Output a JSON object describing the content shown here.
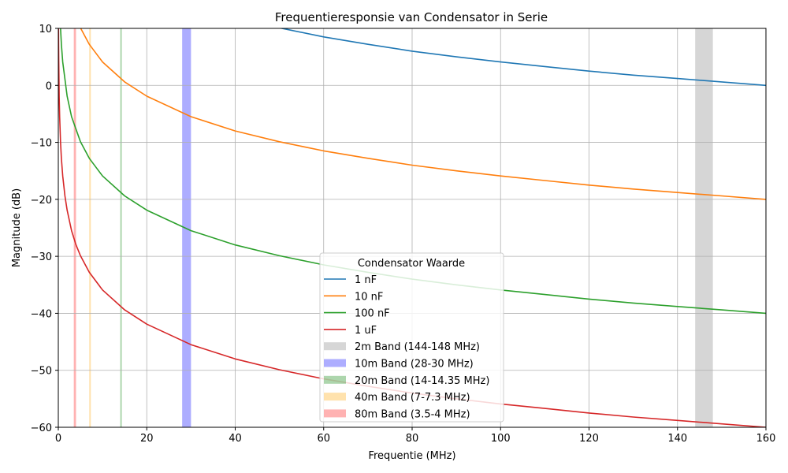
{
  "chart_data": {
    "type": "line",
    "title": "Frequentieresponsie van Condensator in Serie",
    "xlabel": "Frequentie (MHz)",
    "ylabel": "Magnitude (dB)",
    "xlim": [
      0,
      160
    ],
    "ylim": [
      -60,
      10
    ],
    "xticks": [
      0,
      20,
      40,
      60,
      80,
      100,
      120,
      140,
      160
    ],
    "yticks": [
      -60,
      -50,
      -40,
      -30,
      -20,
      -10,
      0,
      10
    ],
    "grid": true,
    "legend_title": "Condensator Waarde",
    "legend_position": "lower-center",
    "series": [
      {
        "name": "1 nF",
        "color": "#1f77b4",
        "x": [
          47.5,
          50,
          60,
          70,
          80,
          90,
          100,
          110,
          120,
          130,
          140,
          150,
          160
        ],
        "y": [
          10.5,
          10.1,
          8.5,
          7.2,
          6.0,
          5.0,
          4.1,
          3.3,
          2.5,
          1.8,
          1.2,
          0.6,
          0.0
        ]
      },
      {
        "name": "10 nF",
        "color": "#ff7f0e",
        "x": [
          4.7,
          5,
          7,
          10,
          15,
          20,
          30,
          40,
          50,
          60,
          70,
          80,
          90,
          100,
          110,
          120,
          130,
          140,
          150,
          160
        ],
        "y": [
          10.5,
          10.1,
          7.2,
          4.1,
          0.6,
          -1.9,
          -5.5,
          -8.0,
          -9.9,
          -11.5,
          -12.8,
          -14.0,
          -15.0,
          -15.9,
          -16.7,
          -17.5,
          -18.2,
          -18.8,
          -19.4,
          -20.0
        ]
      },
      {
        "name": "100 nF",
        "color": "#2ca02c",
        "x": [
          0.5,
          0.7,
          1,
          2,
          3,
          5,
          7,
          10,
          15,
          20,
          30,
          40,
          50,
          60,
          70,
          80,
          90,
          100,
          110,
          120,
          130,
          140,
          150,
          160
        ],
        "y": [
          10.1,
          7.2,
          4.1,
          -1.9,
          -5.5,
          -9.9,
          -12.8,
          -15.9,
          -19.4,
          -21.9,
          -25.5,
          -28.0,
          -29.9,
          -31.5,
          -32.8,
          -34.0,
          -35.0,
          -35.9,
          -36.7,
          -37.5,
          -38.2,
          -38.8,
          -39.4,
          -40.0
        ]
      },
      {
        "name": "1 uF",
        "color": "#d62728",
        "x": [
          0.05,
          0.07,
          0.1,
          0.2,
          0.3,
          0.5,
          0.7,
          1,
          1.5,
          2,
          3,
          4,
          5,
          7,
          10,
          15,
          20,
          30,
          40,
          50,
          60,
          70,
          80,
          90,
          100,
          110,
          120,
          130,
          140,
          150,
          160
        ],
        "y": [
          10.1,
          7.2,
          4.1,
          -1.9,
          -5.5,
          -9.9,
          -12.8,
          -15.9,
          -19.4,
          -21.9,
          -25.5,
          -28.0,
          -29.9,
          -32.8,
          -35.9,
          -39.4,
          -41.9,
          -45.5,
          -48.0,
          -49.9,
          -51.5,
          -52.8,
          -54.0,
          -55.0,
          -55.9,
          -56.7,
          -57.5,
          -58.2,
          -58.8,
          -59.4,
          -60.0
        ]
      }
    ],
    "bands": [
      {
        "name": "2m Band (144-148 MHz)",
        "from": 144,
        "to": 148,
        "color": "#999999",
        "opacity": 0.4
      },
      {
        "name": "10m Band (28-30 MHz)",
        "from": 28,
        "to": 30,
        "color": "#0000ff",
        "opacity": 0.32
      },
      {
        "name": "20m Band (14-14.35 MHz)",
        "from": 14,
        "to": 14.35,
        "color": "#008000",
        "opacity": 0.32
      },
      {
        "name": "40m Band (7-7.3 MHz)",
        "from": 7,
        "to": 7.3,
        "color": "#ffa500",
        "opacity": 0.32
      },
      {
        "name": "80m Band (3.5-4 MHz)",
        "from": 3.5,
        "to": 4,
        "color": "#ff0000",
        "opacity": 0.3
      }
    ]
  }
}
